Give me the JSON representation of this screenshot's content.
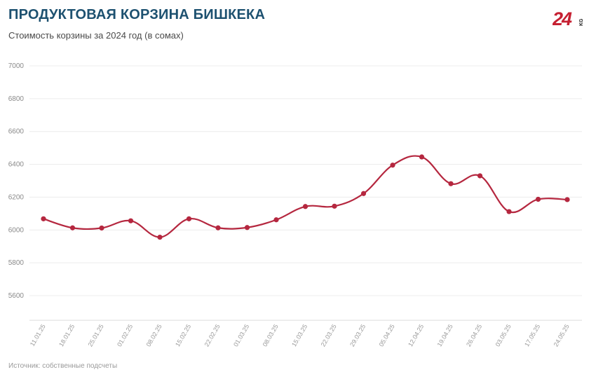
{
  "header": {
    "title": "ПРОДУКТОВАЯ КОРЗИНА БИШКЕКА",
    "subtitle": "Стоимость корзины за 2024 год (в сомах)"
  },
  "logo": {
    "text": "24",
    "suffix": "KG",
    "color": "#c62032"
  },
  "footer": {
    "source": "Источник: собственные подсчеты"
  },
  "chart_data": {
    "type": "line",
    "title": "ПРОДУКТОВАЯ КОРЗИНА БИШКЕКА",
    "subtitle": "Стоимость корзины за 2024 год (в сомах)",
    "xlabel": "",
    "ylabel": "",
    "ylim": [
      5450,
      7000
    ],
    "yticks": [
      5600,
      5800,
      6000,
      6200,
      6400,
      6600,
      6800,
      7000
    ],
    "grid": true,
    "legend": "none",
    "line_color": "#b5273f",
    "categories": [
      "11.01.25",
      "18.01.25",
      "25.01.25",
      "01.02.25",
      "08.02.25",
      "15.02.25",
      "22.02.25",
      "01.03.25",
      "08.03.25",
      "15.03.25",
      "22.03.25",
      "29.03.25",
      "05.04.25",
      "12.04.25",
      "19.04.25",
      "26.04.25",
      "03.05.25",
      "17.05.25",
      "24.05.25"
    ],
    "values": [
      6068,
      6013,
      6012,
      6056,
      5956,
      6068,
      6013,
      6015,
      6062,
      6143,
      6145,
      6222,
      6395,
      6445,
      6282,
      6330,
      6112,
      6187,
      6185
    ]
  }
}
